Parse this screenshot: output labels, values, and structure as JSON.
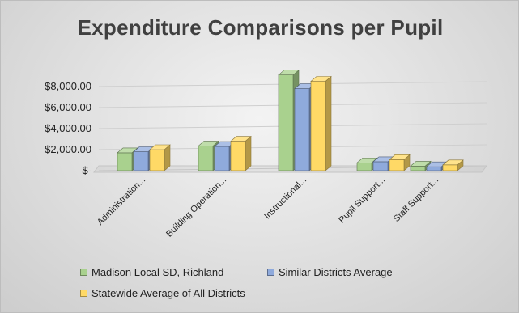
{
  "chart_data": {
    "type": "bar",
    "title": "Expenditure Comparisons per Pupil",
    "xlabel": "",
    "ylabel": "",
    "categories": [
      "Administration...",
      "Building Operation...",
      "Instructional...",
      "Pupil Support...",
      "Staff Support..."
    ],
    "series": [
      {
        "name": "Madison Local SD, Richland",
        "color": "#a9d18e",
        "values": [
          1700,
          2350,
          9100,
          750,
          430
        ]
      },
      {
        "name": "Similar Districts Average",
        "color": "#8faadc",
        "values": [
          1800,
          2300,
          7800,
          850,
          370
        ]
      },
      {
        "name": "Statewide Average of All Districts",
        "color": "#ffd966",
        "values": [
          2000,
          2800,
          8500,
          1050,
          550
        ]
      }
    ],
    "yticks": [
      {
        "value": 0,
        "label": "$-"
      },
      {
        "value": 2000,
        "label": "$2,000.00"
      },
      {
        "value": 4000,
        "label": "$4,000.00"
      },
      {
        "value": 6000,
        "label": "$6,000.00"
      },
      {
        "value": 8000,
        "label": "$8,000.00"
      }
    ],
    "ylim": [
      0,
      10000
    ],
    "grid": true,
    "legend_position": "bottom",
    "style": "3d-clustered-column"
  }
}
